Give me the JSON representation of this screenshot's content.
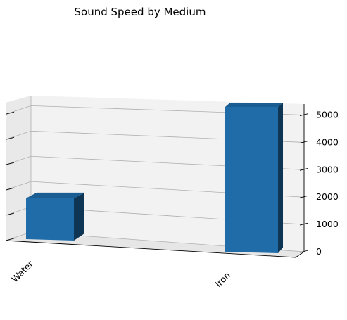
{
  "chart_data": {
    "type": "bar",
    "title": "Sound Speed by Medium",
    "categories": [
      "Water",
      "Iron"
    ],
    "values": [
      1480,
      5120
    ],
    "zlim": [
      0,
      5400
    ],
    "z_ticks": [
      0,
      1000,
      2000,
      3000,
      4000,
      5000
    ],
    "grid": true,
    "bar_color": "#1f6ca8",
    "bar_side_color": "#0e3553",
    "bar_top_color": "#1a5d92",
    "pane_color": "#f2f2f2",
    "grid_color": "#b0b0b0"
  }
}
